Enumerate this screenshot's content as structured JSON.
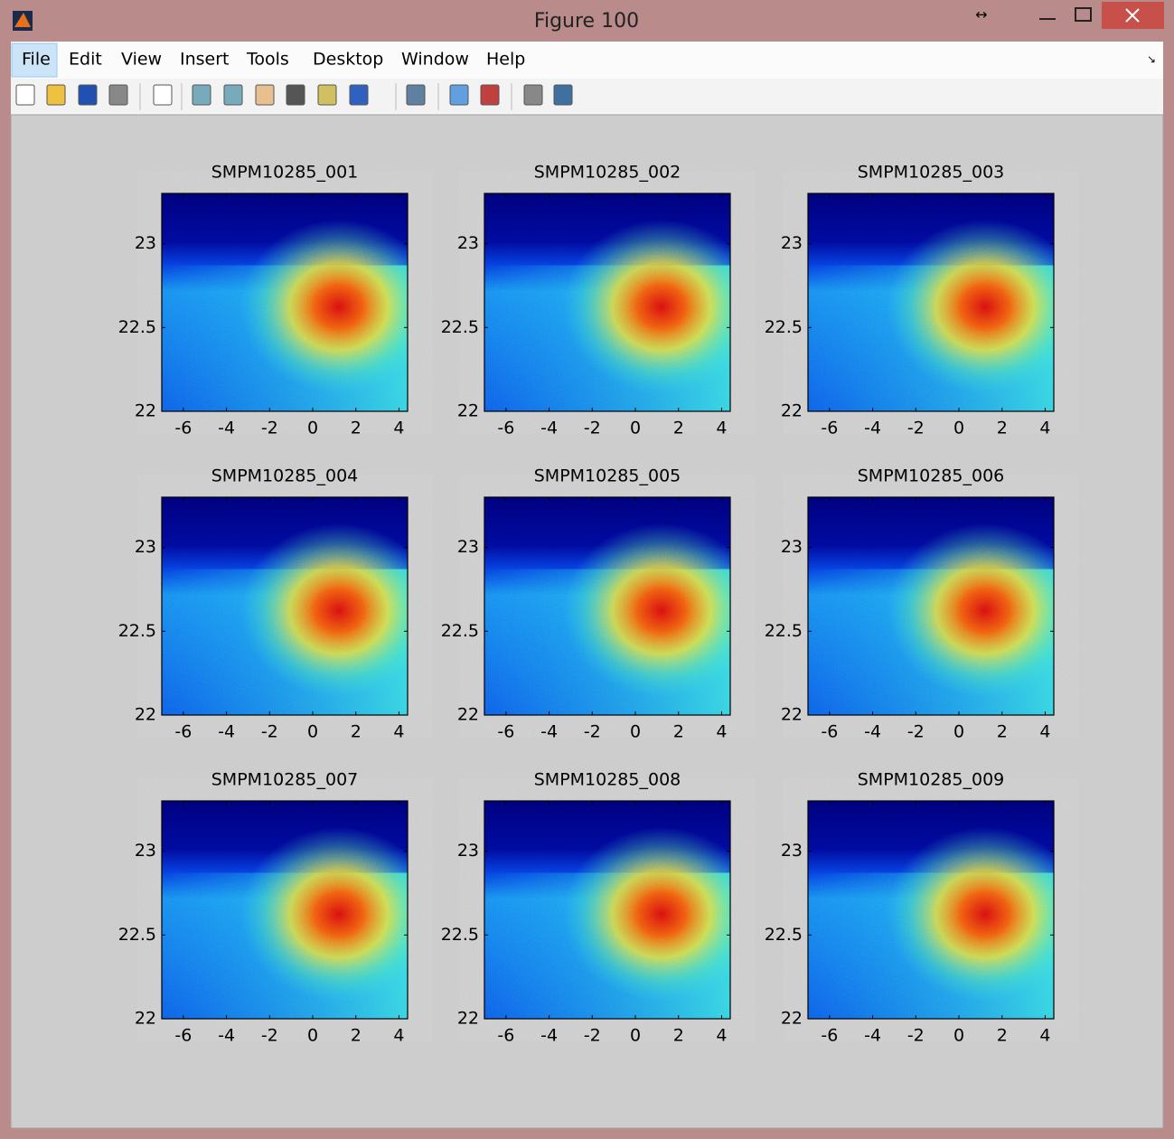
{
  "window": {
    "title": "Figure 100"
  },
  "menu": [
    "File",
    "Edit",
    "View",
    "Insert",
    "Tools",
    "Desktop",
    "Window",
    "Help"
  ],
  "chart_data": [
    {
      "type": "heatmap",
      "title": "SMPM10285_001",
      "xlim": [
        -7,
        4.4
      ],
      "xticks": [
        -6,
        -4,
        -2,
        0,
        2,
        4
      ],
      "ylim": [
        22,
        23.3
      ],
      "yticks": [
        22,
        22.5,
        23
      ]
    },
    {
      "type": "heatmap",
      "title": "SMPM10285_002",
      "xlim": [
        -7,
        4.4
      ],
      "xticks": [
        -6,
        -4,
        -2,
        0,
        2,
        4
      ],
      "ylim": [
        22,
        23.3
      ],
      "yticks": [
        22,
        22.5,
        23
      ]
    },
    {
      "type": "heatmap",
      "title": "SMPM10285_003",
      "xlim": [
        -7,
        4.4
      ],
      "xticks": [
        -6,
        -4,
        -2,
        0,
        2,
        4
      ],
      "ylim": [
        22,
        23.3
      ],
      "yticks": [
        22,
        22.5,
        23
      ]
    },
    {
      "type": "heatmap",
      "title": "SMPM10285_004",
      "xlim": [
        -7,
        4.4
      ],
      "xticks": [
        -6,
        -4,
        -2,
        0,
        2,
        4
      ],
      "ylim": [
        22,
        23.3
      ],
      "yticks": [
        22,
        22.5,
        23
      ]
    },
    {
      "type": "heatmap",
      "title": "SMPM10285_005",
      "xlim": [
        -7,
        4.4
      ],
      "xticks": [
        -6,
        -4,
        -2,
        0,
        2,
        4
      ],
      "ylim": [
        22,
        23.3
      ],
      "yticks": [
        22,
        22.5,
        23
      ]
    },
    {
      "type": "heatmap",
      "title": "SMPM10285_006",
      "xlim": [
        -7,
        4.4
      ],
      "xticks": [
        -6,
        -4,
        -2,
        0,
        2,
        4
      ],
      "ylim": [
        22,
        23.3
      ],
      "yticks": [
        22,
        22.5,
        23
      ]
    },
    {
      "type": "heatmap",
      "title": "SMPM10285_007",
      "xlim": [
        -7,
        4.4
      ],
      "xticks": [
        -6,
        -4,
        -2,
        0,
        2,
        4
      ],
      "ylim": [
        22,
        23.3
      ],
      "yticks": [
        22,
        22.5,
        23
      ]
    },
    {
      "type": "heatmap",
      "title": "SMPM10285_008",
      "xlim": [
        -7,
        4.4
      ],
      "xticks": [
        -6,
        -4,
        -2,
        0,
        2,
        4
      ],
      "ylim": [
        22,
        23.3
      ],
      "yticks": [
        22,
        22.5,
        23
      ]
    },
    {
      "type": "heatmap",
      "title": "SMPM10285_009",
      "xlim": [
        -7,
        4.4
      ],
      "xticks": [
        -6,
        -4,
        -2,
        0,
        2,
        4
      ],
      "ylim": [
        22,
        23.3
      ],
      "yticks": [
        22,
        22.5,
        23
      ]
    }
  ]
}
